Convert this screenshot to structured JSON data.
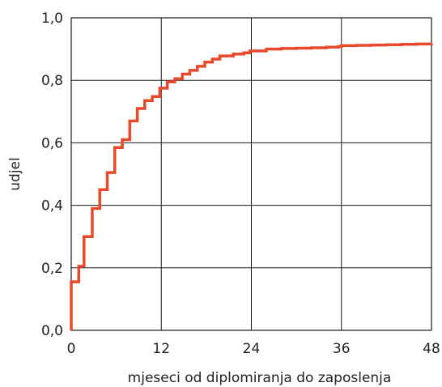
{
  "chart_data": {
    "type": "line",
    "step": true,
    "title": "",
    "xlabel": "mjeseci od diplomiranja do zaposlenja",
    "ylabel": "udjel",
    "xlim": [
      0,
      48
    ],
    "ylim": [
      0,
      1.0
    ],
    "grid": true,
    "x_ticks": [
      0,
      12,
      24,
      36,
      48
    ],
    "x_tick_labels": [
      "0",
      "12",
      "24",
      "36",
      "48"
    ],
    "y_ticks": [
      0,
      0.2,
      0.4,
      0.6,
      0.8,
      1.0
    ],
    "y_tick_labels": [
      "0,0",
      "0,2",
      "0,4",
      "0,6",
      "0,8",
      "1,0"
    ],
    "series": [
      {
        "color": "#e8492a",
        "x": [
          0,
          0,
          1,
          1.7,
          1.7,
          2.8,
          2.8,
          3.8,
          3.8,
          4.8,
          4.8,
          5.8,
          5.8,
          6.8,
          6.8,
          7.8,
          7.8,
          8.8,
          8.8,
          9.8,
          9.8,
          10.8,
          10.8,
          11.8,
          11.8,
          12.8,
          12.8,
          13.8,
          13.8,
          14.8,
          14.8,
          15.8,
          15.8,
          16.8,
          16.8,
          17.8,
          17.8,
          18.8,
          18.8,
          19.8,
          19.8,
          21.6,
          23.0,
          23.8,
          26,
          28,
          30,
          32,
          34,
          35.6,
          36,
          38,
          40,
          42,
          44,
          46,
          48
        ],
        "y": [
          0,
          0.155,
          0.205,
          0.215,
          0.3,
          0.31,
          0.39,
          0.395,
          0.45,
          0.455,
          0.505,
          0.51,
          0.585,
          0.59,
          0.61,
          0.615,
          0.67,
          0.675,
          0.71,
          0.712,
          0.735,
          0.738,
          0.748,
          0.748,
          0.775,
          0.778,
          0.795,
          0.797,
          0.805,
          0.807,
          0.82,
          0.822,
          0.832,
          0.834,
          0.845,
          0.847,
          0.858,
          0.86,
          0.868,
          0.87,
          0.878,
          0.884,
          0.888,
          0.894,
          0.9,
          0.902,
          0.903,
          0.904,
          0.906,
          0.908,
          0.911,
          0.912,
          0.913,
          0.914,
          0.915,
          0.916,
          0.917
        ]
      }
    ]
  }
}
